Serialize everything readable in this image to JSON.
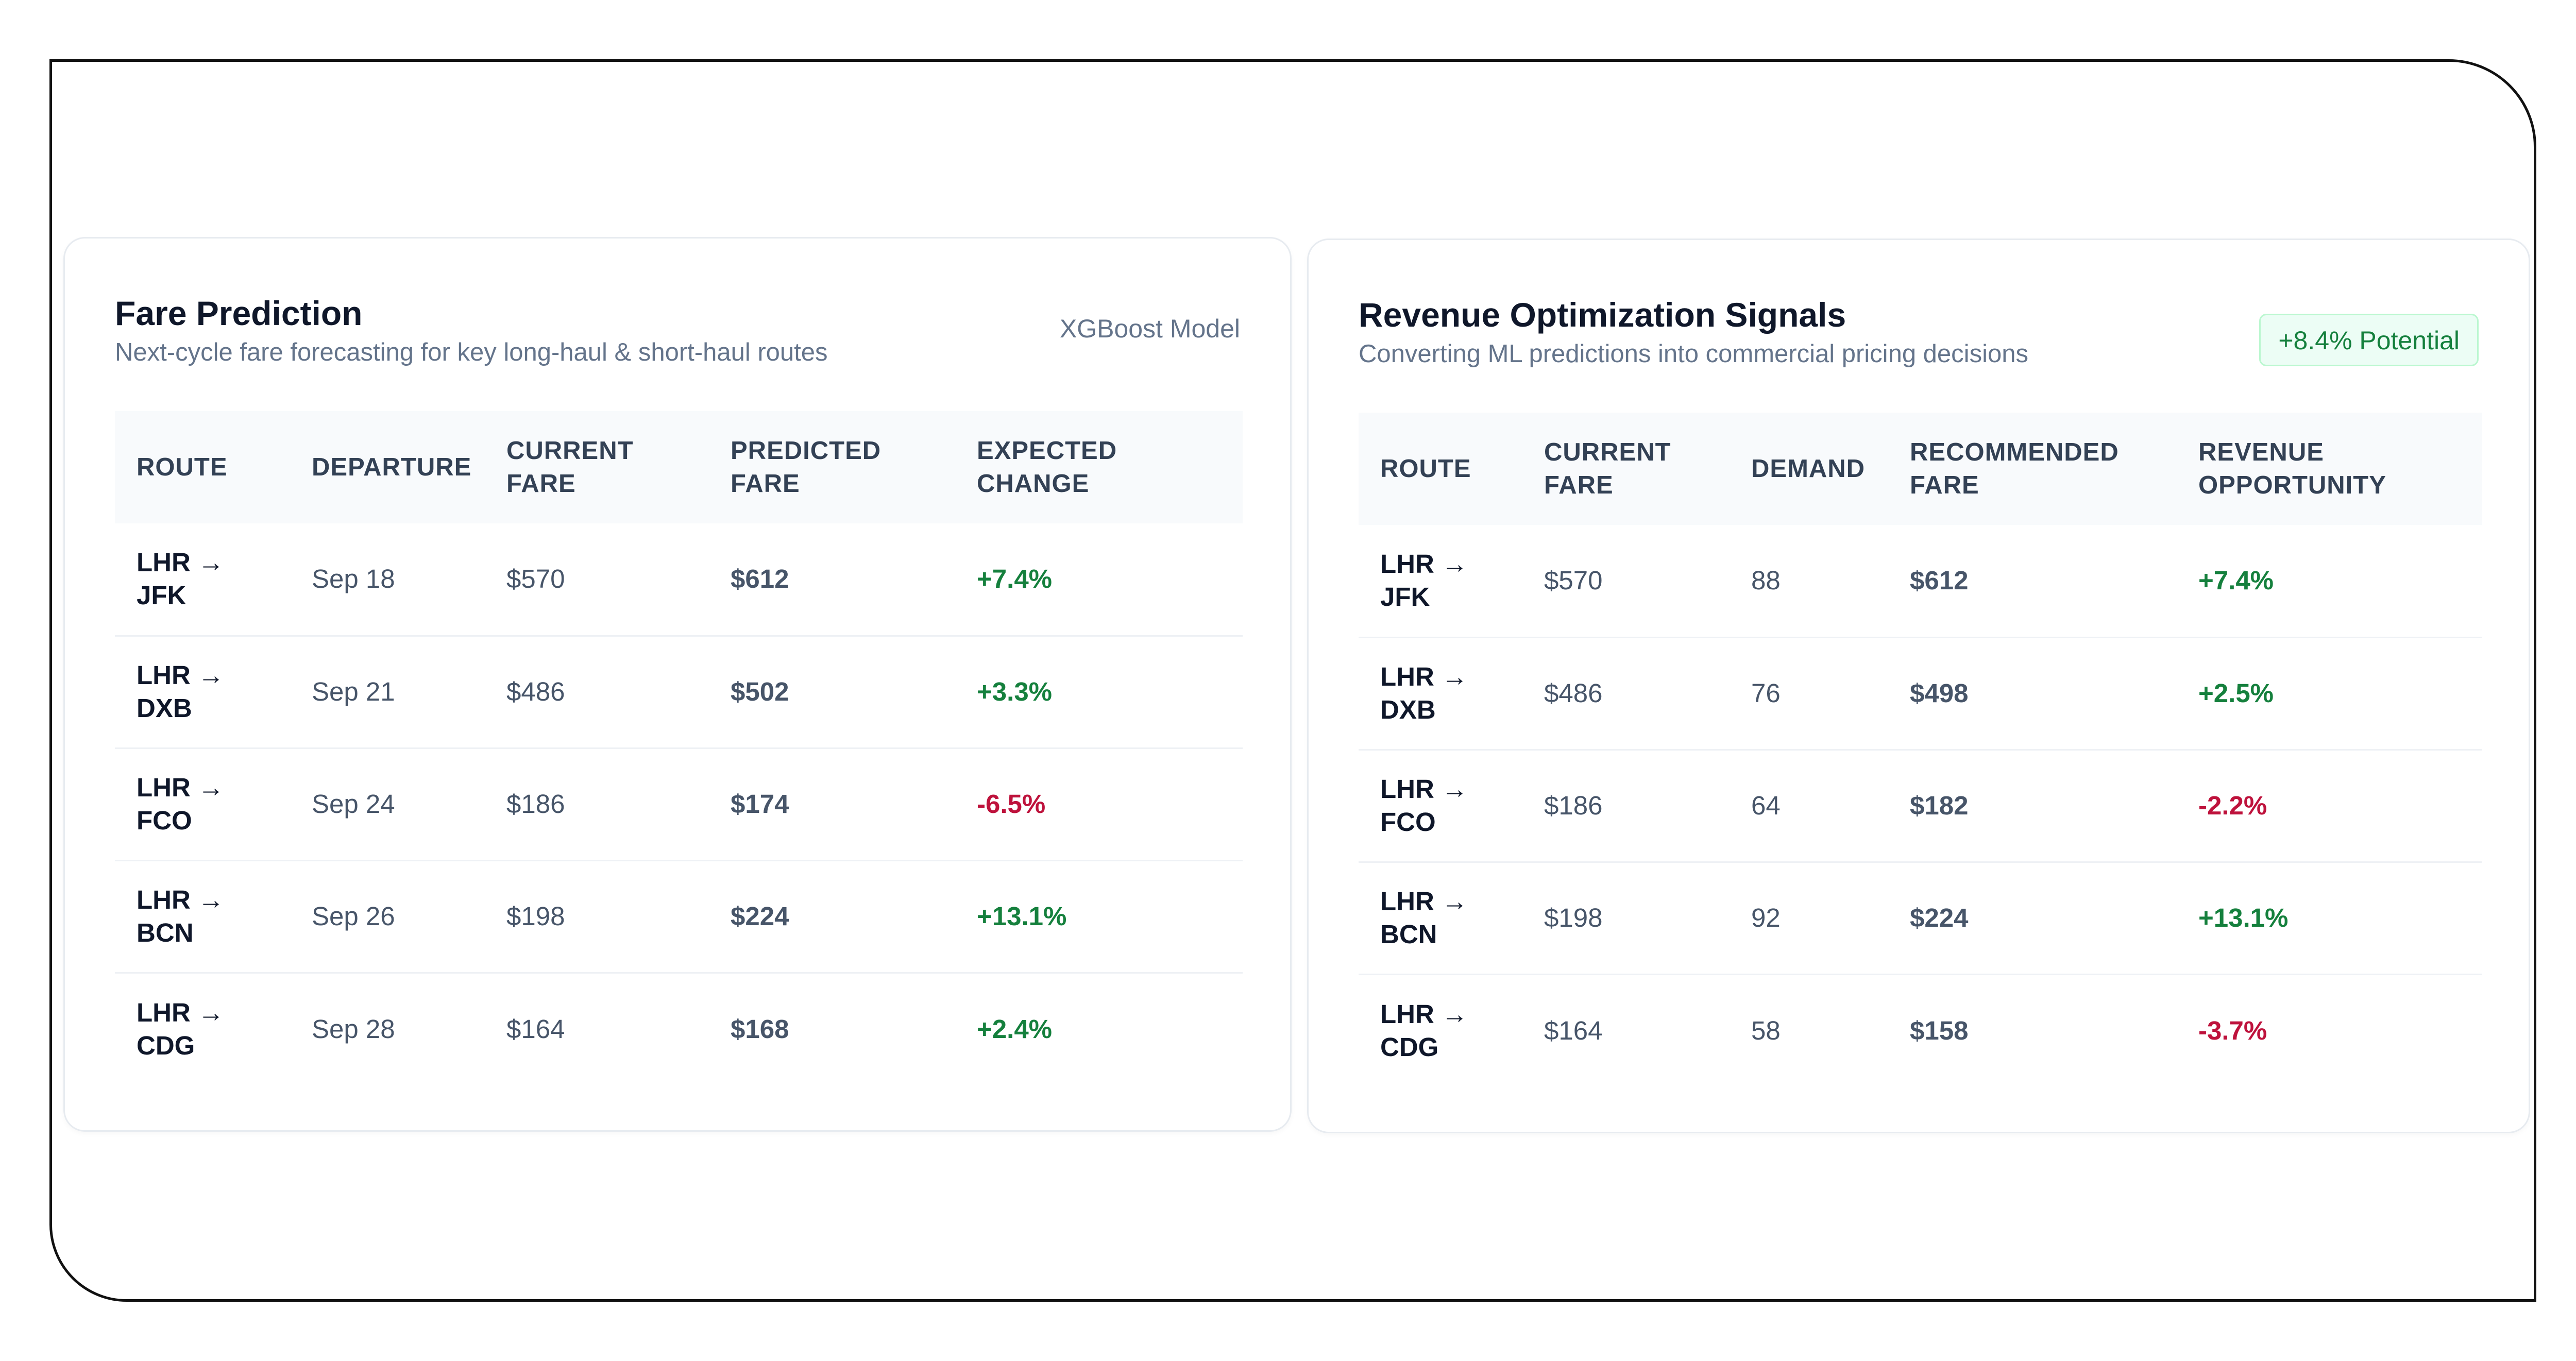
{
  "colors": {
    "positive": "#15803d",
    "negative": "#be123c",
    "header_bg": "#f8fafc",
    "muted_text": "#64748b",
    "title_text": "#0f172a",
    "badge_bg": "#ecfdf5"
  },
  "fare_prediction": {
    "title": "Fare Prediction",
    "subtitle": "Next-cycle fare forecasting for key long-haul & short-haul routes",
    "model_tag": "XGBoost Model",
    "columns": [
      "ROUTE",
      "DEPARTURE",
      "CURRENT FARE",
      "PREDICTED FARE",
      "EXPECTED CHANGE"
    ],
    "rows": [
      {
        "route_from": "LHR →",
        "route_to": "JFK",
        "departure": "Sep 18",
        "current_fare": "$570",
        "predicted_fare": "$612",
        "change": "+7.4%",
        "trend": "pos"
      },
      {
        "route_from": "LHR →",
        "route_to": "DXB",
        "departure": "Sep 21",
        "current_fare": "$486",
        "predicted_fare": "$502",
        "change": "+3.3%",
        "trend": "pos"
      },
      {
        "route_from": "LHR →",
        "route_to": "FCO",
        "departure": "Sep 24",
        "current_fare": "$186",
        "predicted_fare": "$174",
        "change": "-6.5%",
        "trend": "neg"
      },
      {
        "route_from": "LHR →",
        "route_to": "BCN",
        "departure": "Sep 26",
        "current_fare": "$198",
        "predicted_fare": "$224",
        "change": "+13.1%",
        "trend": "pos"
      },
      {
        "route_from": "LHR →",
        "route_to": "CDG",
        "departure": "Sep 28",
        "current_fare": "$164",
        "predicted_fare": "$168",
        "change": "+2.4%",
        "trend": "pos"
      }
    ]
  },
  "revenue_signals": {
    "title": "Revenue Optimization Signals",
    "subtitle": "Converting ML predictions into commercial pricing decisions",
    "badge": "+8.4% Potential",
    "columns": [
      "ROUTE",
      "CURRENT FARE",
      "DEMAND",
      "RECOMMENDED FARE",
      "REVENUE OPPORTUNITY"
    ],
    "rows": [
      {
        "route_from": "LHR →",
        "route_to": "JFK",
        "current_fare": "$570",
        "demand": "88",
        "recommended_fare": "$612",
        "opportunity": "+7.4%",
        "trend": "pos"
      },
      {
        "route_from": "LHR →",
        "route_to": "DXB",
        "current_fare": "$486",
        "demand": "76",
        "recommended_fare": "$498",
        "opportunity": "+2.5%",
        "trend": "pos"
      },
      {
        "route_from": "LHR →",
        "route_to": "FCO",
        "current_fare": "$186",
        "demand": "64",
        "recommended_fare": "$182",
        "opportunity": "-2.2%",
        "trend": "neg"
      },
      {
        "route_from": "LHR →",
        "route_to": "BCN",
        "current_fare": "$198",
        "demand": "92",
        "recommended_fare": "$224",
        "opportunity": "+13.1%",
        "trend": "pos"
      },
      {
        "route_from": "LHR →",
        "route_to": "CDG",
        "current_fare": "$164",
        "demand": "58",
        "recommended_fare": "$158",
        "opportunity": "-3.7%",
        "trend": "neg"
      }
    ]
  }
}
